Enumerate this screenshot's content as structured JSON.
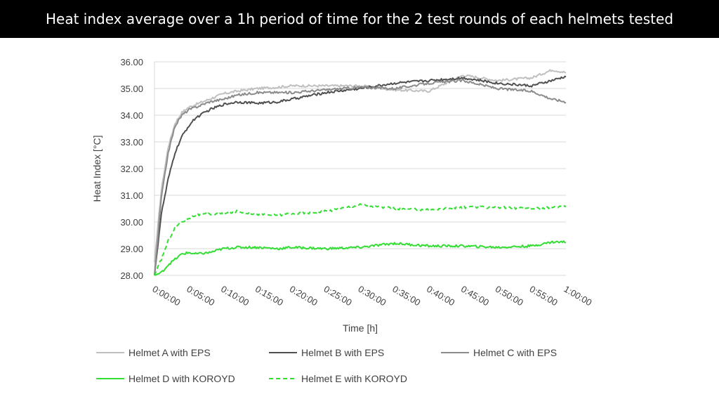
{
  "header": {
    "title": "Heat index average over a 1h period of time for the 2 test rounds of each helmets tested"
  },
  "chart_data": {
    "type": "line",
    "title": "",
    "xlabel": "Time [h]",
    "ylabel": "Heat Index [°C]",
    "ylim": [
      28,
      36
    ],
    "xlim_minutes": [
      0,
      60
    ],
    "y_ticks": [
      "28.00",
      "29.00",
      "30.00",
      "31.00",
      "32.00",
      "33.00",
      "34.00",
      "35.00",
      "36.00"
    ],
    "x_ticks": [
      "0:00:00",
      "0:05:00",
      "0:10:00",
      "0:15:00",
      "0:20:00",
      "0:25:00",
      "0:30:00",
      "0:35:00",
      "0:40:00",
      "0:45:00",
      "0:50:00",
      "0:55:00",
      "1:00:00"
    ],
    "grid": "horizontal",
    "legend_position": "bottom",
    "series": [
      {
        "name": "Helmet A with EPS",
        "color": "#c0c0c0",
        "dash": "solid",
        "x": [
          0,
          1,
          2,
          3,
          4,
          5,
          6,
          8,
          10,
          12,
          15,
          18,
          20,
          25,
          30,
          35,
          40,
          45,
          50,
          55,
          58,
          60
        ],
        "values": [
          28.5,
          31.2,
          32.8,
          33.7,
          34.1,
          34.3,
          34.4,
          34.6,
          34.8,
          34.9,
          35.0,
          35.05,
          35.1,
          35.1,
          35.1,
          34.95,
          34.9,
          35.5,
          35.3,
          35.4,
          35.7,
          35.6
        ]
      },
      {
        "name": "Helmet B with EPS",
        "color": "#505050",
        "dash": "solid",
        "x": [
          0,
          1,
          2,
          3,
          4,
          5,
          6,
          8,
          10,
          12,
          15,
          18,
          20,
          25,
          30,
          35,
          40,
          45,
          50,
          55,
          58,
          60
        ],
        "values": [
          28.0,
          30.3,
          31.6,
          32.6,
          33.2,
          33.6,
          33.9,
          34.2,
          34.4,
          34.5,
          34.45,
          34.5,
          34.6,
          34.85,
          35.0,
          35.2,
          35.3,
          35.4,
          35.2,
          35.1,
          35.3,
          35.45
        ]
      },
      {
        "name": "Helmet C with EPS",
        "color": "#8c8c8c",
        "dash": "solid",
        "x": [
          0,
          1,
          2,
          3,
          4,
          5,
          6,
          8,
          10,
          12,
          15,
          18,
          20,
          25,
          30,
          35,
          40,
          45,
          50,
          55,
          58,
          60
        ],
        "values": [
          28.0,
          30.9,
          32.6,
          33.6,
          34.0,
          34.2,
          34.3,
          34.5,
          34.6,
          34.75,
          34.85,
          34.85,
          34.85,
          34.95,
          35.05,
          35.0,
          35.2,
          35.3,
          35.0,
          34.9,
          34.6,
          34.5
        ]
      },
      {
        "name": "Helmet D with KOROYD",
        "color": "#33dd33",
        "dash": "solid",
        "x": [
          0,
          1,
          2,
          3,
          4,
          5,
          6,
          8,
          10,
          12,
          15,
          18,
          20,
          25,
          30,
          35,
          40,
          45,
          50,
          55,
          58,
          60
        ],
        "values": [
          28.0,
          28.1,
          28.4,
          28.6,
          28.8,
          28.85,
          28.8,
          28.85,
          29.0,
          29.05,
          29.05,
          29.0,
          29.05,
          29.0,
          29.05,
          29.2,
          29.1,
          29.1,
          29.05,
          29.1,
          29.25,
          29.25
        ]
      },
      {
        "name": "Helmet E with KOROYD",
        "color": "#33dd33",
        "dash": "dashed",
        "x": [
          0,
          1,
          2,
          3,
          4,
          5,
          6,
          8,
          10,
          12,
          15,
          18,
          20,
          25,
          30,
          35,
          40,
          45,
          50,
          55,
          58,
          60
        ],
        "values": [
          28.0,
          28.6,
          29.3,
          29.8,
          30.0,
          30.15,
          30.25,
          30.3,
          30.3,
          30.4,
          30.3,
          30.25,
          30.3,
          30.4,
          30.65,
          30.5,
          30.45,
          30.55,
          30.55,
          30.5,
          30.55,
          30.6
        ]
      }
    ]
  }
}
